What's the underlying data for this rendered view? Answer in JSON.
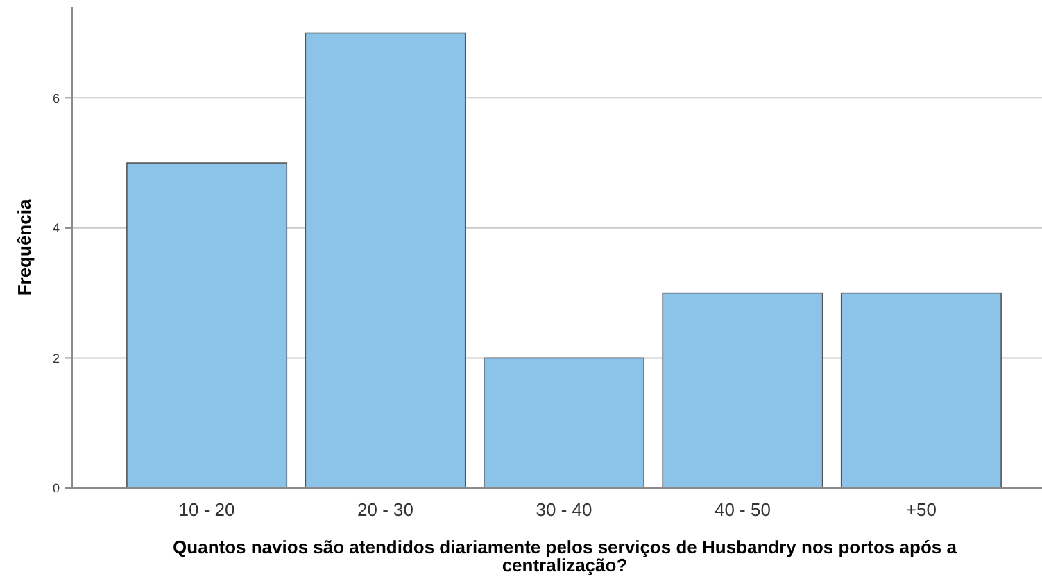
{
  "chart_data": {
    "type": "bar",
    "xlabel": "Quantos navios são atendidos diariamente pelos serviços de Husbandry nos portos após a centralização?",
    "ylabel": "Frequência",
    "categories": [
      "10 - 20",
      "20 - 30",
      "30 - 40",
      "40 - 50",
      "+50"
    ],
    "values": [
      5,
      7,
      2,
      3,
      3
    ],
    "color": "#8cc3e9",
    "ylim": [
      0,
      7.4
    ],
    "yticks": [
      0,
      2,
      4,
      6
    ],
    "grid": "y"
  }
}
